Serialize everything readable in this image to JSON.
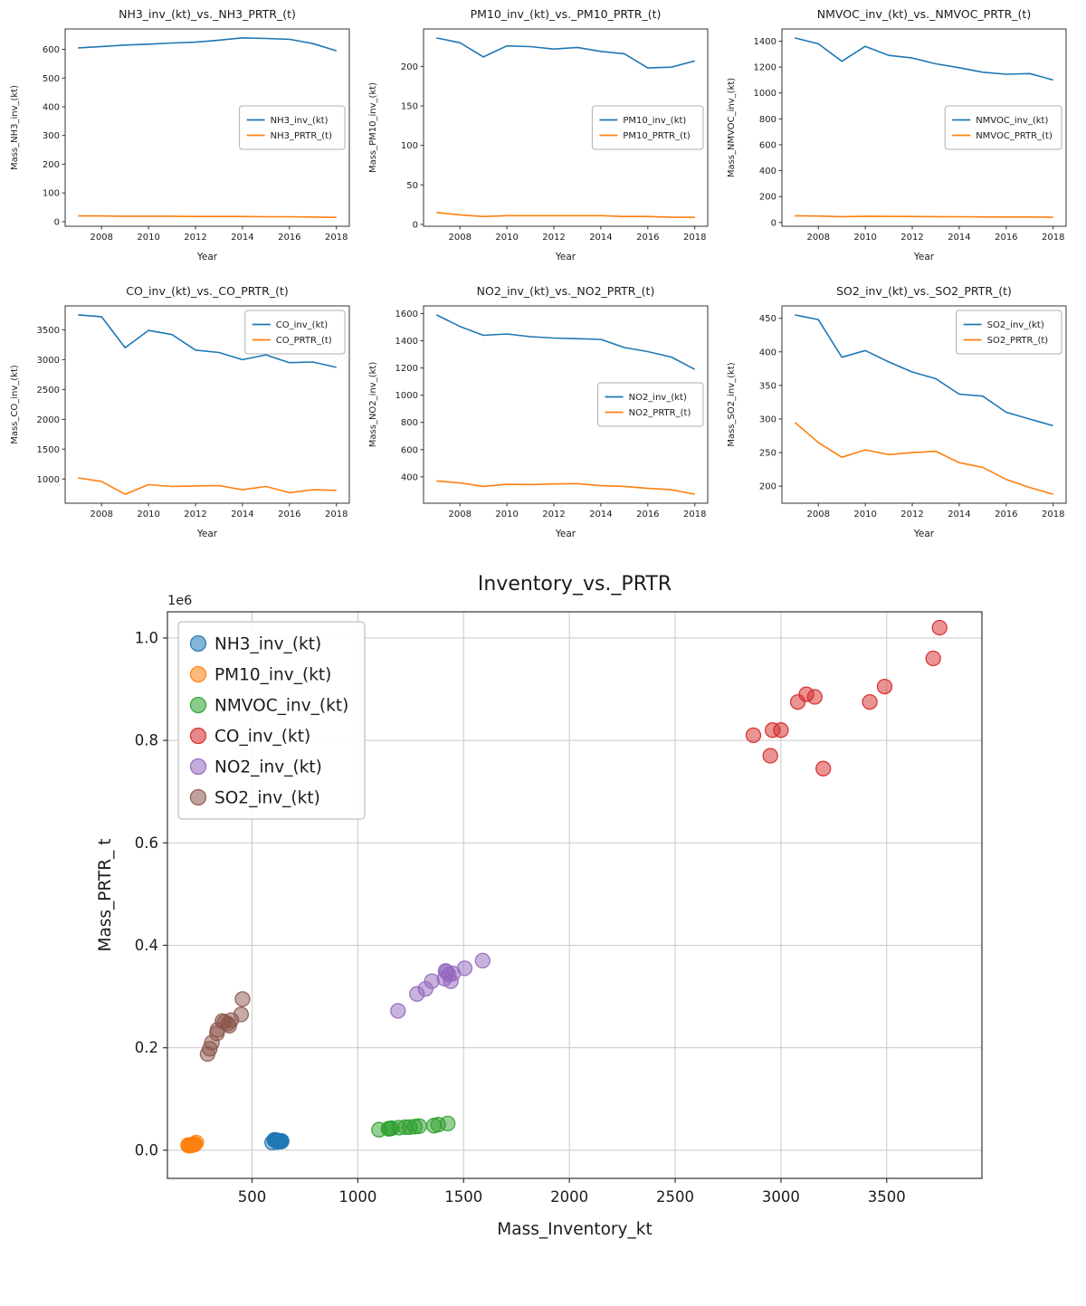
{
  "figure": {
    "background": "#ffffff",
    "text_color": "#1c1c1c",
    "spine_color": "#333333",
    "grid_color": "#c9c9c9",
    "years": [
      2007,
      2008,
      2009,
      2010,
      2011,
      2012,
      2013,
      2014,
      2015,
      2016,
      2017,
      2018
    ]
  },
  "chart_data": [
    {
      "id": "nh3",
      "type": "line",
      "title": "NH3_inv_(kt)_vs._NH3_PRTR_(t)",
      "xlabel": "Year",
      "ylabel": "Mass_NH3_inv_(kt)",
      "x": [
        2007,
        2008,
        2009,
        2010,
        2011,
        2012,
        2013,
        2014,
        2015,
        2016,
        2017,
        2018
      ],
      "xlim": [
        2006.45,
        2018.55
      ],
      "xticks": [
        2008,
        2010,
        2012,
        2014,
        2016,
        2018
      ],
      "ylim": [
        -16,
        671
      ],
      "yticks": [
        0,
        100,
        200,
        300,
        400,
        500,
        600
      ],
      "grid": false,
      "legend_loc": "center-right",
      "series": [
        {
          "name": "NH3_inv_(kt)",
          "color": "#1f77b4",
          "values": [
            605,
            610,
            615,
            618,
            622,
            625,
            632,
            640,
            638,
            635,
            620,
            595
          ]
        },
        {
          "name": "NH3_PRTR_(t)",
          "color": "#ff7f0e",
          "values": [
            20,
            20,
            19,
            19,
            19,
            18,
            18,
            18,
            17,
            17,
            16,
            15
          ]
        }
      ]
    },
    {
      "id": "pm10",
      "type": "line",
      "title": "PM10_inv_(kt)_vs._PM10_PRTR_(t)",
      "xlabel": "Year",
      "ylabel": "Mass_PM10_inv_(kt)",
      "x": [
        2007,
        2008,
        2009,
        2010,
        2011,
        2012,
        2013,
        2014,
        2015,
        2016,
        2017,
        2018
      ],
      "xlim": [
        2006.45,
        2018.55
      ],
      "xticks": [
        2008,
        2010,
        2012,
        2014,
        2016,
        2018
      ],
      "ylim": [
        -2.4,
        247.4
      ],
      "yticks": [
        0,
        50,
        100,
        150,
        200
      ],
      "grid": false,
      "legend_loc": "center-right",
      "series": [
        {
          "name": "PM10_inv_(kt)",
          "color": "#1f77b4",
          "values": [
            236,
            230,
            212,
            226,
            225,
            222,
            224,
            219,
            216,
            198,
            199,
            207
          ]
        },
        {
          "name": "PM10_PRTR_(t)",
          "color": "#ff7f0e",
          "values": [
            15,
            12,
            10,
            11,
            11,
            11,
            11,
            11,
            10,
            10,
            9,
            9
          ]
        }
      ]
    },
    {
      "id": "nmvoc",
      "type": "line",
      "title": "NMVOC_inv_(kt)_vs._NMVOC_PRTR_(t)",
      "xlabel": "Year",
      "ylabel": "Mass_NMVOC_inv_(kt)",
      "x": [
        2007,
        2008,
        2009,
        2010,
        2011,
        2012,
        2013,
        2014,
        2015,
        2016,
        2017,
        2018
      ],
      "xlim": [
        2006.45,
        2018.55
      ],
      "xticks": [
        2008,
        2010,
        2012,
        2014,
        2016,
        2018
      ],
      "ylim": [
        -29.3,
        1494.3
      ],
      "yticks": [
        0,
        200,
        400,
        600,
        800,
        1000,
        1200,
        1400
      ],
      "grid": false,
      "legend_loc": "center-right",
      "series": [
        {
          "name": "NMVOC_inv_(kt)",
          "color": "#1f77b4",
          "values": [
            1425,
            1380,
            1245,
            1360,
            1290,
            1270,
            1225,
            1195,
            1160,
            1145,
            1150,
            1100
          ]
        },
        {
          "name": "NMVOC_PRTR_(t)",
          "color": "#ff7f0e",
          "values": [
            52,
            50,
            45,
            48,
            47,
            46,
            45,
            44,
            43,
            42,
            42,
            40
          ]
        }
      ]
    },
    {
      "id": "co",
      "type": "line",
      "title": "CO_inv_(kt)_vs._CO_PRTR_(t)",
      "xlabel": "Year",
      "ylabel": "Mass_CO_inv_(kt)",
      "x": [
        2007,
        2008,
        2009,
        2010,
        2011,
        2012,
        2013,
        2014,
        2015,
        2016,
        2017,
        2018
      ],
      "xlim": [
        2006.45,
        2018.55
      ],
      "xticks": [
        2008,
        2010,
        2012,
        2014,
        2016,
        2018
      ],
      "ylim": [
        594.7,
        3900.3
      ],
      "yticks": [
        1000,
        1500,
        2000,
        2500,
        3000,
        3500
      ],
      "grid": false,
      "legend_loc": "upper-right",
      "series": [
        {
          "name": "CO_inv_(kt)",
          "color": "#1f77b4",
          "values": [
            3750,
            3720,
            3200,
            3490,
            3420,
            3160,
            3120,
            3000,
            3080,
            2950,
            2960,
            2870
          ]
        },
        {
          "name": "CO_PRTR_(t)",
          "color": "#ff7f0e",
          "values": [
            1020,
            960,
            745,
            905,
            875,
            885,
            890,
            820,
            875,
            770,
            820,
            810
          ]
        }
      ]
    },
    {
      "id": "no2",
      "type": "line",
      "title": "NO2_inv_(kt)_vs._NO2_PRTR_(t)",
      "xlabel": "Year",
      "ylabel": "Mass_NO2_inv_(kt)",
      "x": [
        2007,
        2008,
        2009,
        2010,
        2011,
        2012,
        2013,
        2014,
        2015,
        2016,
        2017,
        2018
      ],
      "xlim": [
        2006.45,
        2018.55
      ],
      "xticks": [
        2008,
        2010,
        2012,
        2014,
        2016,
        2018
      ],
      "ylim": [
        206.1,
        1655.9
      ],
      "yticks": [
        400,
        600,
        800,
        1000,
        1200,
        1400,
        1600
      ],
      "grid": false,
      "legend_loc": "center-right",
      "series": [
        {
          "name": "NO2_inv_(kt)",
          "color": "#1f77b4",
          "values": [
            1590,
            1505,
            1440,
            1450,
            1430,
            1420,
            1415,
            1410,
            1350,
            1320,
            1280,
            1190
          ]
        },
        {
          "name": "NO2_PRTR_(t)",
          "color": "#ff7f0e",
          "values": [
            370,
            355,
            330,
            345,
            343,
            348,
            350,
            335,
            330,
            315,
            305,
            272
          ]
        }
      ]
    },
    {
      "id": "so2",
      "type": "line",
      "title": "SO2_inv_(kt)_vs._SO2_PRTR_(t)",
      "xlabel": "Year",
      "ylabel": "Mass_SO2_inv_(kt)",
      "x": [
        2007,
        2008,
        2009,
        2010,
        2011,
        2012,
        2013,
        2014,
        2015,
        2016,
        2017,
        2018
      ],
      "xlim": [
        2006.45,
        2018.55
      ],
      "xticks": [
        2008,
        2010,
        2012,
        2014,
        2016,
        2018
      ],
      "ylim": [
        174.6,
        468.4
      ],
      "yticks": [
        200,
        250,
        300,
        350,
        400,
        450
      ],
      "grid": false,
      "legend_loc": "upper-right",
      "series": [
        {
          "name": "SO2_inv_(kt)",
          "color": "#1f77b4",
          "values": [
            455,
            448,
            392,
            402,
            385,
            370,
            360,
            337,
            334,
            310,
            300,
            290
          ]
        },
        {
          "name": "SO2_PRTR_(t)",
          "color": "#ff7f0e",
          "values": [
            295,
            265,
            243,
            254,
            247,
            250,
            252,
            235,
            228,
            210,
            198,
            188
          ]
        }
      ]
    },
    {
      "id": "inventory_vs_prtr",
      "type": "scatter",
      "title": "Inventory_vs._PRTR",
      "xlabel": "Mass_Inventory_kt",
      "ylabel": "Mass_PRTR_ t",
      "offset_text": "1e6",
      "xlim": [
        100,
        3950
      ],
      "xticks": [
        500,
        1000,
        1500,
        2000,
        2500,
        3000,
        3500
      ],
      "ylim_e6": [
        -0.055,
        1.051
      ],
      "yticks_e6": [
        0.0,
        0.2,
        0.4,
        0.6,
        0.8,
        1.0
      ],
      "ytick_labels": [
        "0.0",
        "0.2",
        "0.4",
        "0.6",
        "0.8",
        "1.0"
      ],
      "grid": true,
      "legend_loc": "upper-left",
      "series": [
        {
          "name": "NH3_inv_(kt)",
          "color": "#1f77b4",
          "x": [
            605,
            610,
            615,
            618,
            622,
            625,
            632,
            640,
            638,
            635,
            620,
            595
          ],
          "y_e6": [
            0.02,
            0.02,
            0.019,
            0.019,
            0.019,
            0.018,
            0.018,
            0.018,
            0.017,
            0.017,
            0.016,
            0.015
          ]
        },
        {
          "name": "PM10_inv_(kt)",
          "color": "#ff7f0e",
          "x": [
            236,
            230,
            212,
            226,
            225,
            222,
            224,
            219,
            216,
            198,
            199,
            207
          ],
          "y_e6": [
            0.015,
            0.012,
            0.01,
            0.011,
            0.011,
            0.011,
            0.011,
            0.011,
            0.01,
            0.01,
            0.009,
            0.009
          ]
        },
        {
          "name": "NMVOC_inv_(kt)",
          "color": "#2ca02c",
          "x": [
            1425,
            1380,
            1245,
            1360,
            1290,
            1270,
            1225,
            1195,
            1160,
            1145,
            1150,
            1100
          ],
          "y_e6": [
            0.052,
            0.05,
            0.045,
            0.048,
            0.047,
            0.046,
            0.045,
            0.044,
            0.043,
            0.042,
            0.042,
            0.04
          ]
        },
        {
          "name": "CO_inv_(kt)",
          "color": "#d62728",
          "x": [
            3750,
            3720,
            3200,
            3490,
            3420,
            3160,
            3120,
            3000,
            3080,
            2950,
            2960,
            2870
          ],
          "y_e6": [
            1.02,
            0.96,
            0.745,
            0.905,
            0.875,
            0.885,
            0.89,
            0.82,
            0.875,
            0.77,
            0.82,
            0.81
          ]
        },
        {
          "name": "NO2_inv_(kt)",
          "color": "#9467bd",
          "x": [
            1590,
            1505,
            1440,
            1450,
            1430,
            1420,
            1415,
            1410,
            1350,
            1320,
            1280,
            1190
          ],
          "y_e6": [
            0.37,
            0.355,
            0.33,
            0.345,
            0.343,
            0.348,
            0.35,
            0.335,
            0.33,
            0.315,
            0.305,
            0.272
          ]
        },
        {
          "name": "SO2_inv_(kt)",
          "color": "#8c564b",
          "x": [
            455,
            448,
            392,
            402,
            385,
            370,
            360,
            337,
            334,
            310,
            300,
            290
          ],
          "y_e6": [
            0.295,
            0.265,
            0.243,
            0.254,
            0.247,
            0.25,
            0.252,
            0.235,
            0.228,
            0.21,
            0.198,
            0.188
          ]
        }
      ]
    }
  ]
}
